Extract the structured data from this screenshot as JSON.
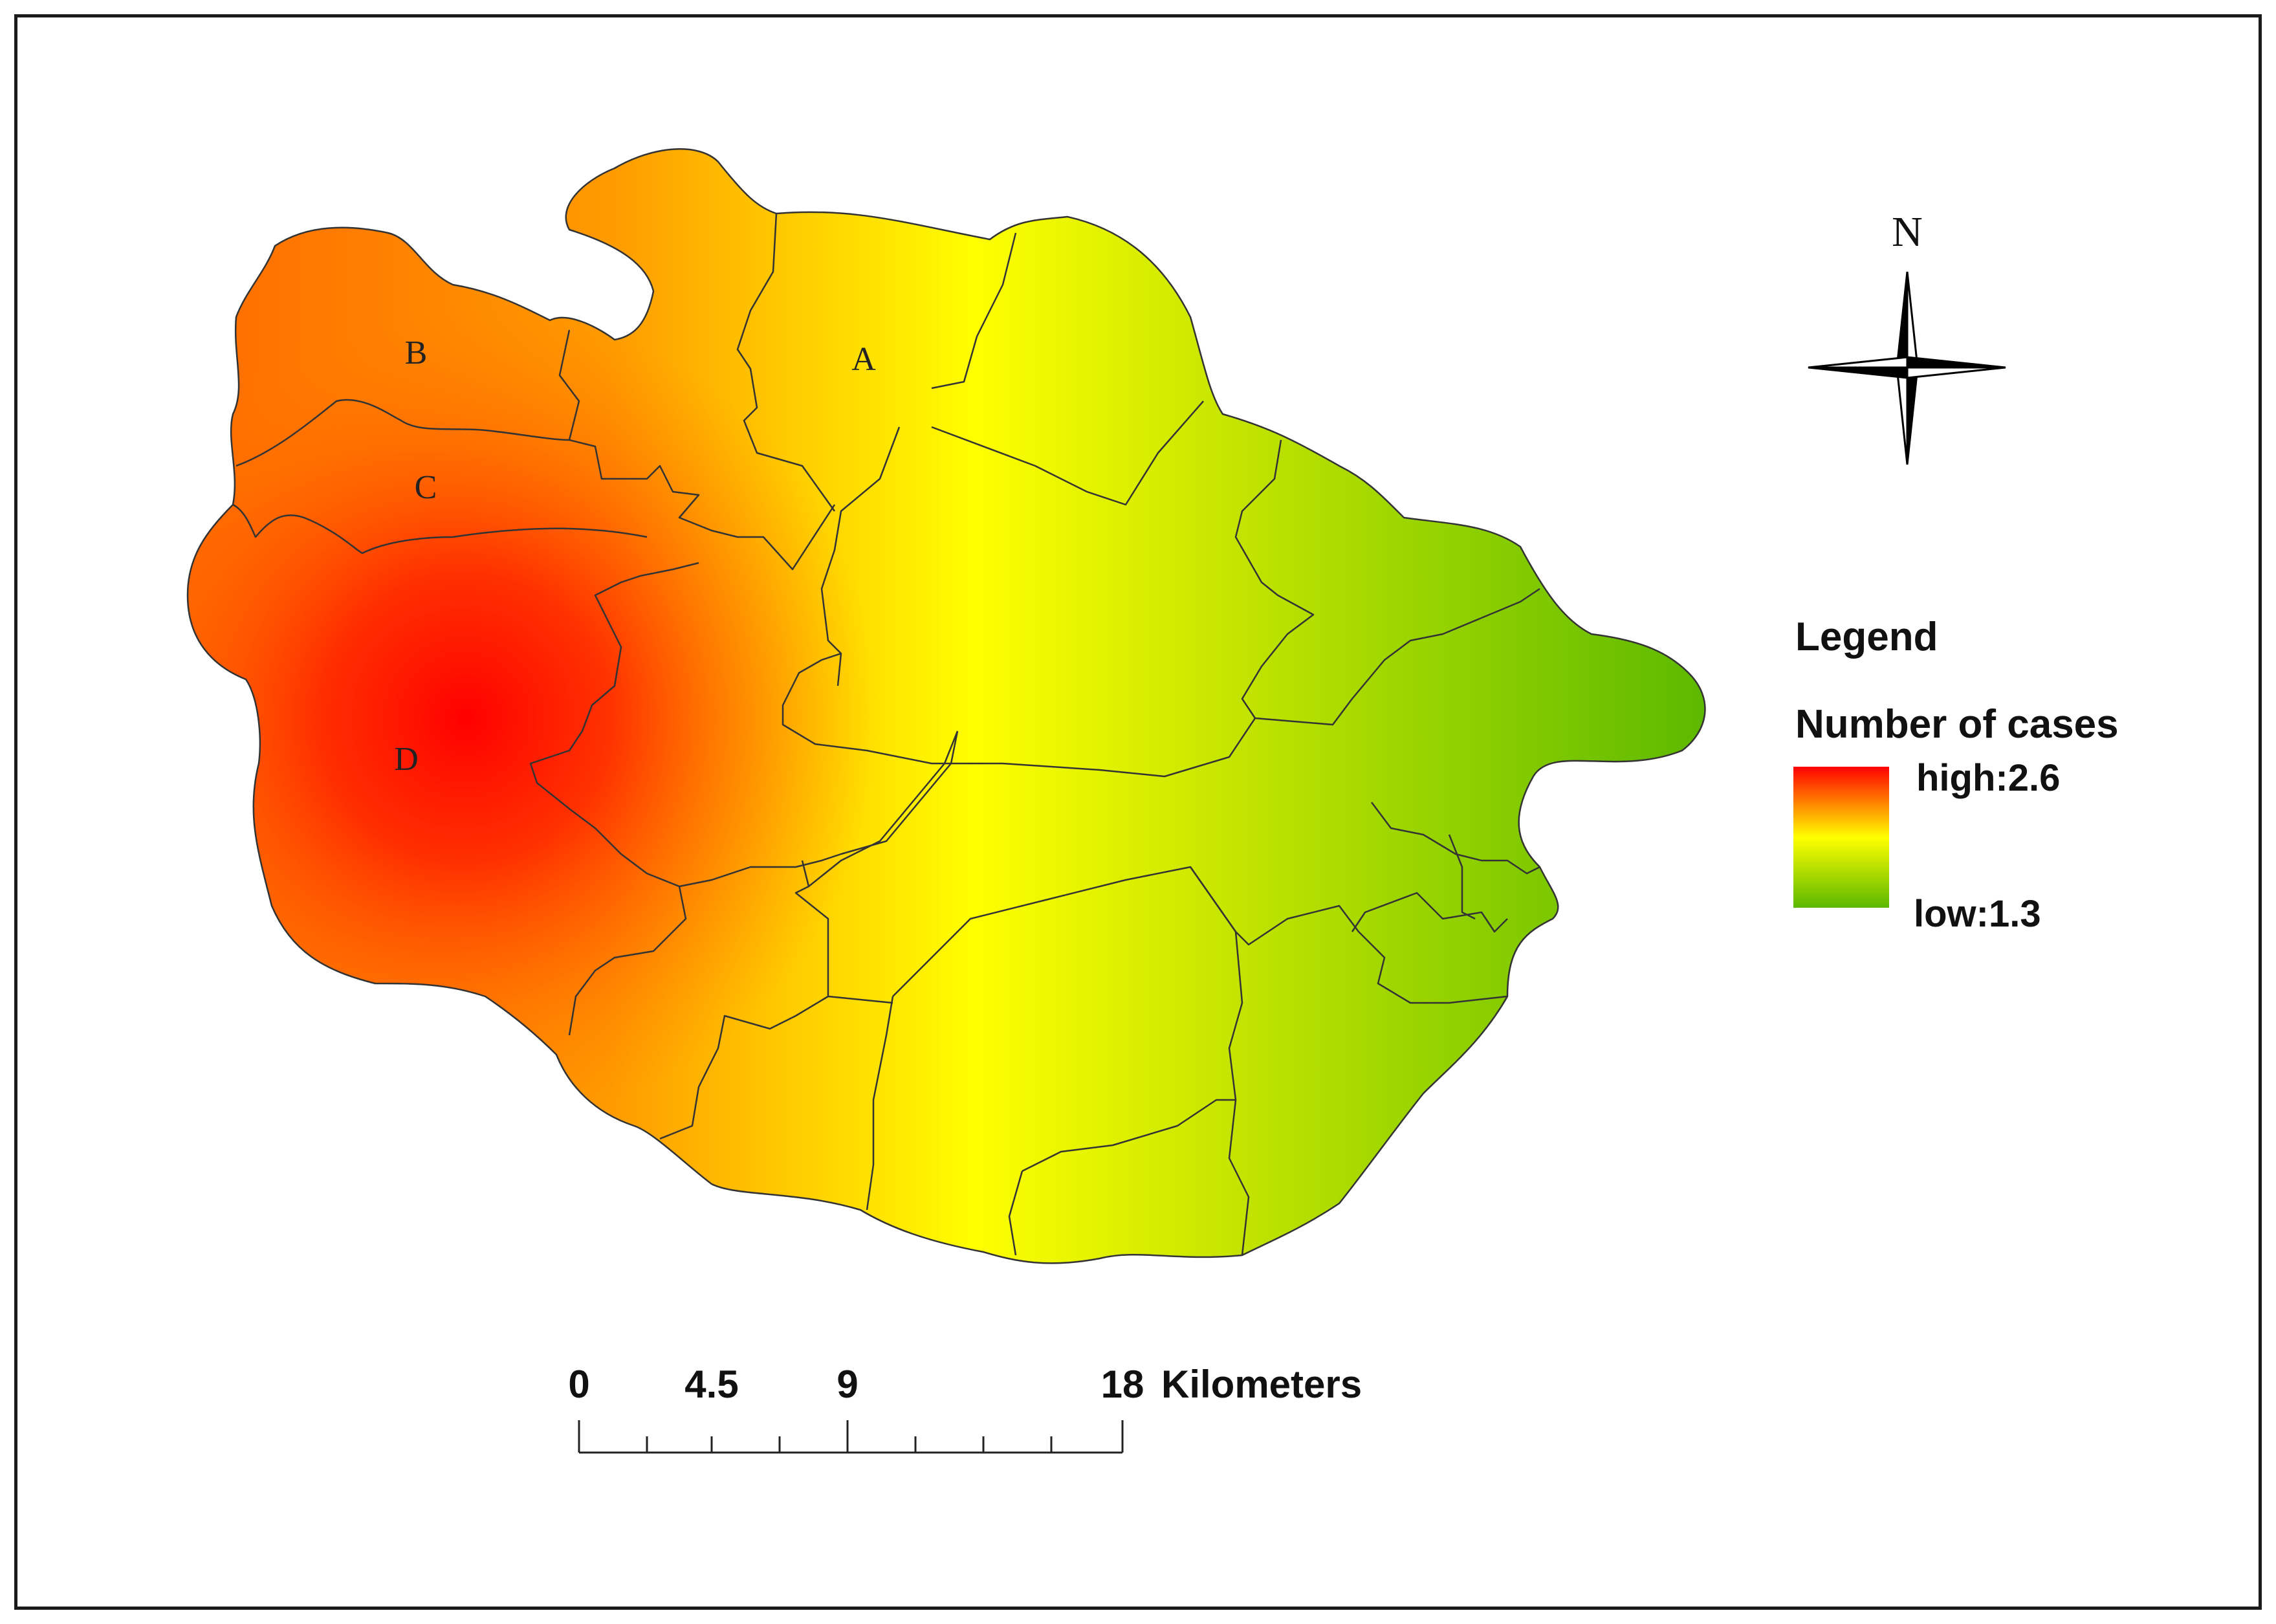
{
  "map": {
    "area_labels": [
      "A",
      "B",
      "C",
      "D"
    ],
    "north_label": "N",
    "legend": {
      "title": "Legend",
      "subtitle": "Number of cases",
      "high_label": "high:2.6",
      "low_label": "low:1.3",
      "high_value": 2.6,
      "low_value": 1.3,
      "colors": [
        "#ff0000",
        "#ffff00",
        "#5cb800"
      ]
    },
    "scale_bar": {
      "ticks": [
        "0",
        "4.5",
        "9",
        "18"
      ],
      "units": "Kilometers"
    }
  }
}
